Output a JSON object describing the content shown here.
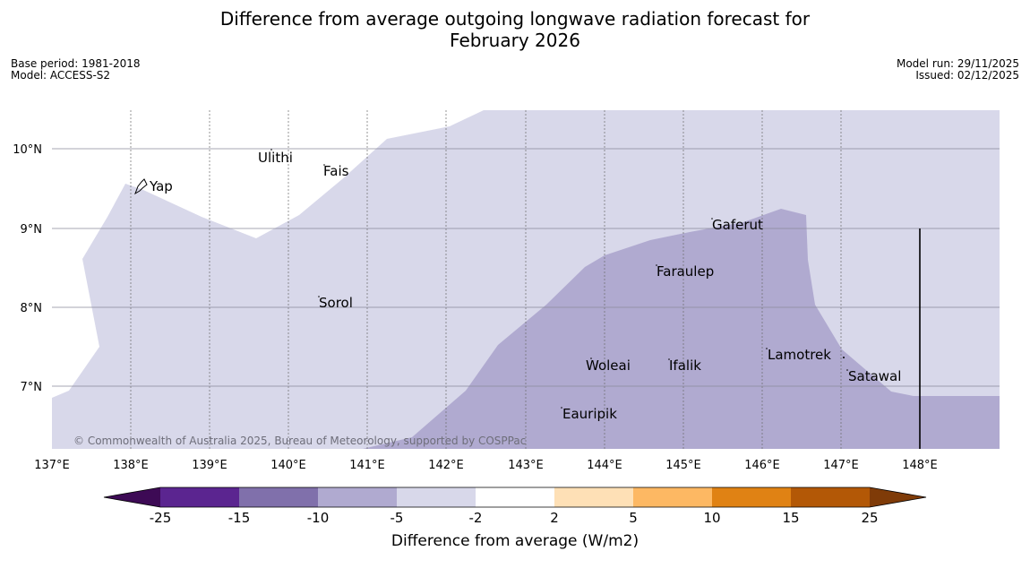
{
  "header": {
    "title_line1": "Difference from average outgoing longwave radiation forecast for",
    "title_line2": "February 2026",
    "base_period": "Base period: 1981-2018",
    "model": "Model: ACCESS-S2",
    "model_run": "Model run: 29/11/2025",
    "issued": "Issued: 02/12/2025"
  },
  "map": {
    "lon_labels": [
      "137°E",
      "138°E",
      "139°E",
      "140°E",
      "141°E",
      "142°E",
      "143°E",
      "144°E",
      "145°E",
      "146°E",
      "147°E",
      "148°E"
    ],
    "lat_labels": [
      "10°N",
      "9°N",
      "8°N",
      "7°N"
    ],
    "places": [
      "Yap",
      "Ulithi",
      "Fais",
      "Gaferut",
      "Faraulep",
      "Sorol",
      "Woleai",
      "Ifalik",
      "Lamotrek",
      "Satawal",
      "Eauripik"
    ],
    "copyright": "© Commonwealth of Australia 2025, Bureau of Meteorology, supported by COSPPac",
    "field_colors": {
      "light": "#d8d8ea",
      "medium": "#b0aad0"
    }
  },
  "colorbar": {
    "ticks": [
      "-25",
      "-15",
      "-10",
      "-5",
      "-2",
      "2",
      "5",
      "10",
      "15",
      "25"
    ],
    "colors": [
      "#3d0a55",
      "#5b2590",
      "#8070ab",
      "#b0aad0",
      "#d8d8ea",
      "#ffffff",
      "#fee0b6",
      "#fdb863",
      "#e08214",
      "#b35806",
      "#7f3b08"
    ],
    "label": "Difference from average (W/m2)"
  }
}
